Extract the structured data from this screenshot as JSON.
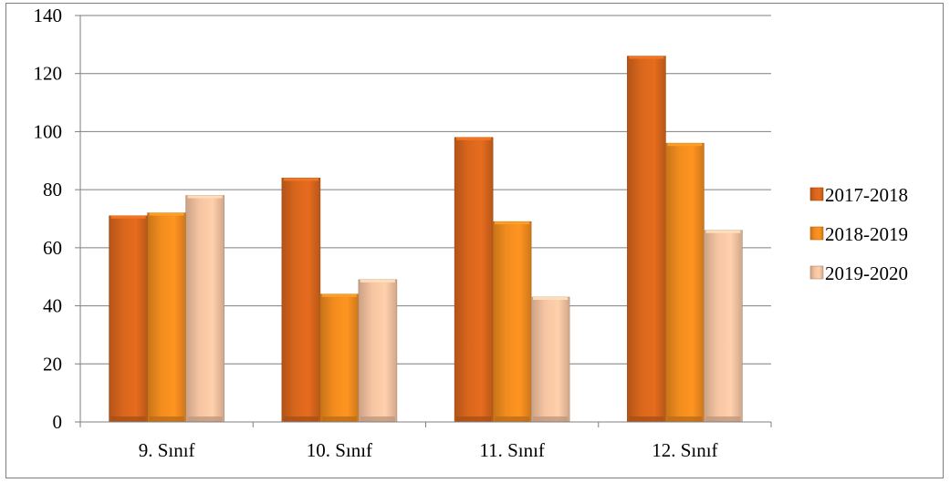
{
  "chart_data": {
    "type": "bar",
    "categories": [
      "9. Sınıf",
      "10. Sınıf",
      "11. Sınıf",
      "12. Sınıf"
    ],
    "series": [
      {
        "name": "2017-2018",
        "values": [
          71,
          84,
          98,
          126
        ],
        "color": "#d9661c"
      },
      {
        "name": "2018-2019",
        "values": [
          72,
          44,
          69,
          96
        ],
        "color": "#f28c1e"
      },
      {
        "name": "2019-2020",
        "values": [
          78,
          49,
          43,
          66
        ],
        "color": "#f6c4a2"
      }
    ],
    "ylim": [
      0,
      140
    ],
    "yticks": [
      0,
      20,
      40,
      60,
      80,
      100,
      120,
      140
    ],
    "grid": true,
    "legend_position": "right"
  }
}
